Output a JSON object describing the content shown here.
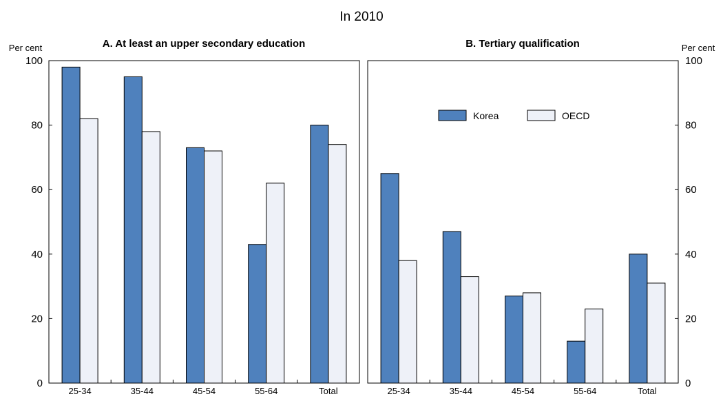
{
  "title": "In 2010",
  "colors": {
    "korea": "#4f81bd",
    "oecd": "#eef1f8",
    "bar_stroke": "#000000"
  },
  "legend": {
    "placement": "top-right of panel B",
    "items": [
      "Korea",
      "OECD"
    ]
  },
  "chart_data": [
    {
      "type": "bar",
      "title": "A. At least an upper secondary education",
      "ylabel": "Per cent",
      "ylim": [
        0,
        100
      ],
      "yticks": [
        0,
        20,
        40,
        60,
        80,
        100
      ],
      "grid": false,
      "categories": [
        "25-34",
        "35-44",
        "45-54",
        "55-64",
        "Total"
      ],
      "series": [
        {
          "name": "Korea",
          "values": [
            98,
            95,
            73,
            43,
            80
          ]
        },
        {
          "name": "OECD",
          "values": [
            82,
            78,
            72,
            62,
            74
          ]
        }
      ]
    },
    {
      "type": "bar",
      "title": "B. Tertiary qualification",
      "ylabel": "Per cent",
      "ylim": [
        0,
        100
      ],
      "yticks": [
        0,
        20,
        40,
        60,
        80,
        100
      ],
      "grid": false,
      "categories": [
        "25-34",
        "35-44",
        "45-54",
        "55-64",
        "Total"
      ],
      "series": [
        {
          "name": "Korea",
          "values": [
            65,
            47,
            27,
            13,
            40
          ]
        },
        {
          "name": "OECD",
          "values": [
            38,
            33,
            28,
            23,
            31
          ]
        }
      ]
    }
  ]
}
